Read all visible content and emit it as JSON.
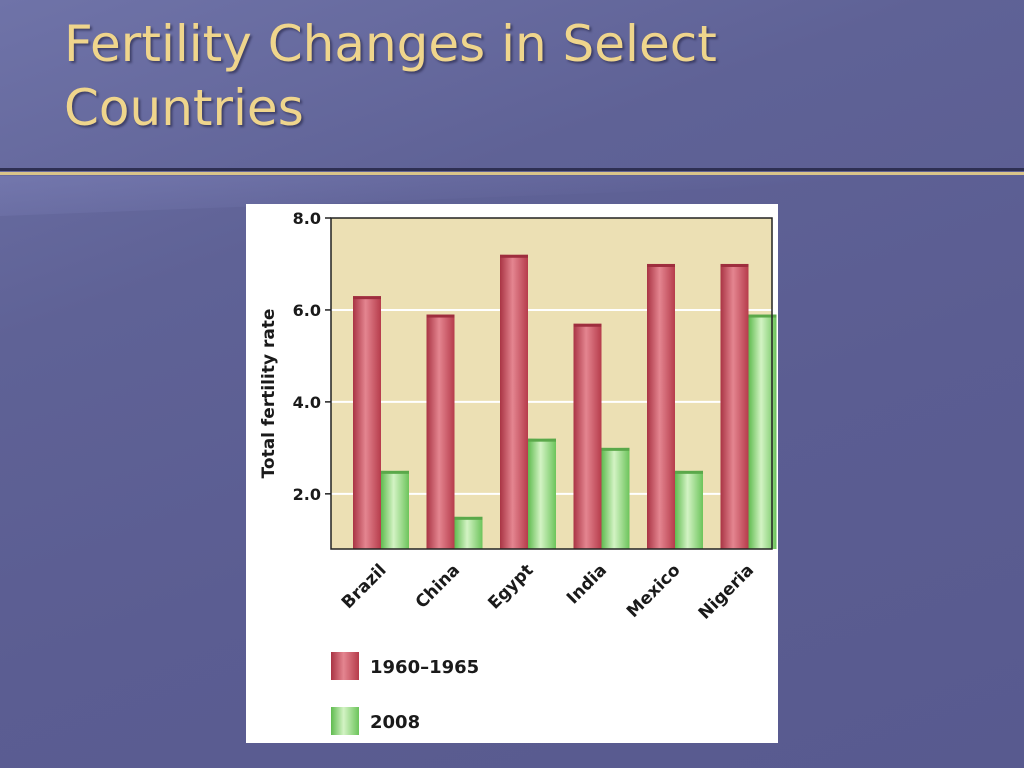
{
  "slide": {
    "title": "Fertility Changes in Select Countries"
  },
  "colors": {
    "background": "#5f6296",
    "title": "#efd58c",
    "plot_area": "#ece0b4",
    "series_1960": "#c9505e",
    "series_2008": "#7dcf6e"
  },
  "chart_data": {
    "type": "bar",
    "title": "",
    "xlabel": "",
    "ylabel": "Total fertility rate",
    "ylim": [
      0.8,
      8.0
    ],
    "yticks": [
      2.0,
      4.0,
      6.0,
      8.0
    ],
    "ytick_labels": [
      "2.0",
      "4.0",
      "6.0",
      "8.0"
    ],
    "grid": true,
    "legend_position": "bottom-left",
    "categories": [
      "Brazil",
      "China",
      "Egypt",
      "India",
      "Mexico",
      "Nigeria"
    ],
    "series": [
      {
        "name": "1960–1965",
        "values": [
          6.3,
          5.9,
          7.2,
          5.7,
          7.0,
          7.0
        ]
      },
      {
        "name": "2008",
        "values": [
          2.5,
          1.5,
          3.2,
          3.0,
          2.5,
          5.9
        ]
      }
    ]
  }
}
